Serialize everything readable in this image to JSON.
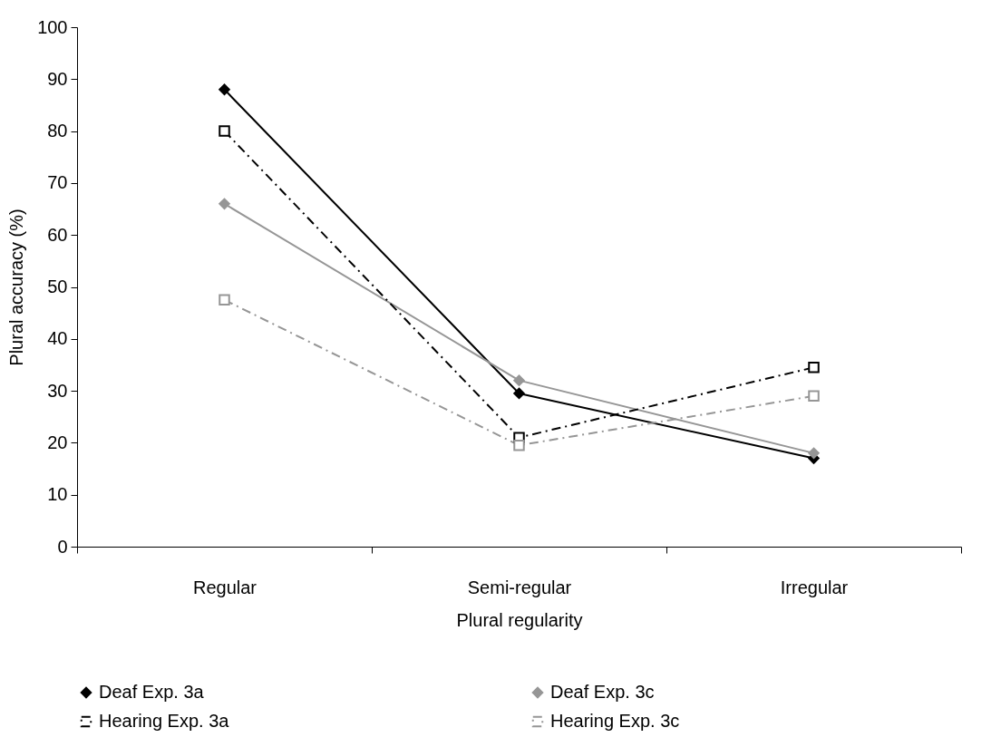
{
  "chart_data": {
    "type": "line",
    "xlabel": "Plural regularity",
    "ylabel": "Plural accuracy (%)",
    "categories": [
      "Regular",
      "Semi-regular",
      "Irregular"
    ],
    "ylim": [
      0,
      100
    ],
    "yticks": [
      0,
      10,
      20,
      30,
      40,
      50,
      60,
      70,
      80,
      90,
      100
    ],
    "grid": false,
    "legend": "bottom",
    "series": [
      {
        "name": "Deaf Exp. 3a",
        "color": "#000000",
        "marker": "diamond",
        "line_style": "solid",
        "values": [
          88,
          29.5,
          17
        ]
      },
      {
        "name": "Deaf Exp. 3c",
        "color": "#969696",
        "marker": "diamond",
        "line_style": "solid",
        "values": [
          66,
          32,
          18
        ]
      },
      {
        "name": "Hearing Exp. 3a",
        "color": "#000000",
        "marker": "square",
        "line_style": "dashed",
        "values": [
          80,
          21,
          34.5
        ]
      },
      {
        "name": "Hearing Exp. 3c",
        "color": "#969696",
        "marker": "square",
        "line_style": "dashed",
        "values": [
          47.5,
          19.5,
          29
        ]
      }
    ]
  }
}
